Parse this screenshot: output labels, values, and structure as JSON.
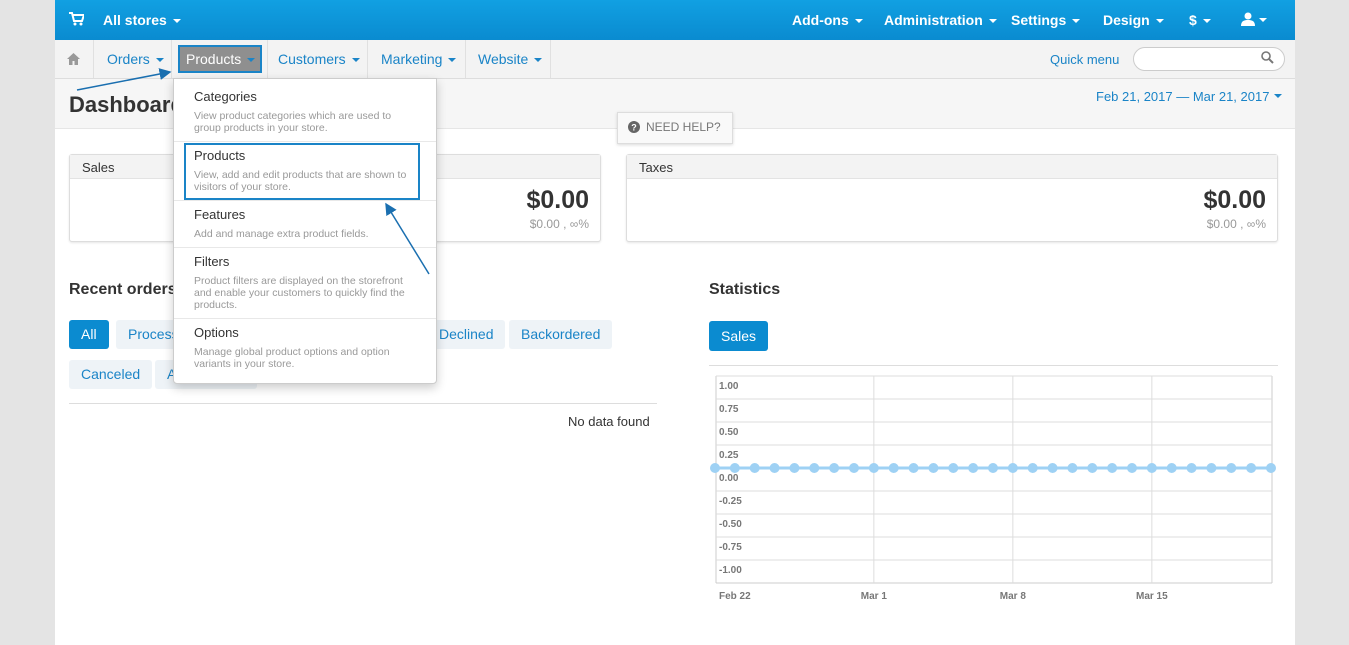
{
  "top_bar": {
    "store": "All stores",
    "menu": [
      "Add-ons",
      "Administration",
      "Settings",
      "Design",
      "$"
    ]
  },
  "nav": {
    "items": [
      "Orders",
      "Products",
      "Customers",
      "Marketing",
      "Website"
    ],
    "quick_menu": "Quick menu"
  },
  "dropdown": {
    "items": [
      {
        "title": "Categories",
        "description": "View product categories which are used to group products in your store."
      },
      {
        "title": "Products",
        "description": "View, add and edit products that are shown to visitors of your store."
      },
      {
        "title": "Features",
        "description": "Add and manage extra product fields."
      },
      {
        "title": "Filters",
        "description": "Product filters are displayed on the storefront and enable your customers to quickly find the products."
      },
      {
        "title": "Options",
        "description": "Manage global product options and option variants in your store."
      }
    ]
  },
  "page": {
    "title": "Dashboard",
    "date_range": "Feb 21, 2017 — Mar 21, 2017",
    "need_help": "NEED HELP?"
  },
  "cards": [
    {
      "title": "Sales",
      "value": "$0.00",
      "sub": "$0.00 , ∞%"
    },
    {
      "title": "Taxes",
      "value": "$0.00",
      "sub": "$0.00 , ∞%"
    }
  ],
  "recent_orders": {
    "title": "Recent orders",
    "tabs": [
      "All",
      "Processed",
      "Declined",
      "Backordered",
      "Canceled",
      "Awaiting call"
    ],
    "empty": "No data found"
  },
  "statistics": {
    "title": "Statistics",
    "tab": "Sales"
  },
  "chart_data": {
    "type": "line",
    "categories": [
      null,
      "Feb 22",
      null,
      null,
      null,
      null,
      null,
      null,
      "Mar 1",
      null,
      null,
      null,
      null,
      null,
      null,
      "Mar 8",
      null,
      null,
      null,
      null,
      null,
      null,
      "Mar 15",
      null,
      null,
      null,
      null,
      null,
      null
    ],
    "series": [
      {
        "color": "#9ed1f4",
        "values": [
          0,
          0,
          0,
          0,
          0,
          0,
          0,
          0,
          0,
          0,
          0,
          0,
          0,
          0,
          0,
          0,
          0,
          0,
          0,
          0,
          0,
          0,
          0,
          0,
          0,
          0,
          0,
          0,
          0
        ]
      }
    ],
    "ylim": [
      -1.25,
      1
    ],
    "yticks": [
      {
        "value": 1,
        "label": "1.00"
      },
      {
        "value": 0.75,
        "label": "0.75"
      },
      {
        "value": 0.5,
        "label": "0.50"
      },
      {
        "value": 0.25,
        "label": "0.25"
      },
      {
        "value": 0,
        "label": "0.00"
      },
      {
        "value": -0.25,
        "label": "-0.25"
      },
      {
        "value": -0.5,
        "label": "-0.50"
      },
      {
        "value": -0.75,
        "label": "-0.75"
      },
      {
        "value": -1,
        "label": "-1.00"
      }
    ],
    "grid": true
  }
}
